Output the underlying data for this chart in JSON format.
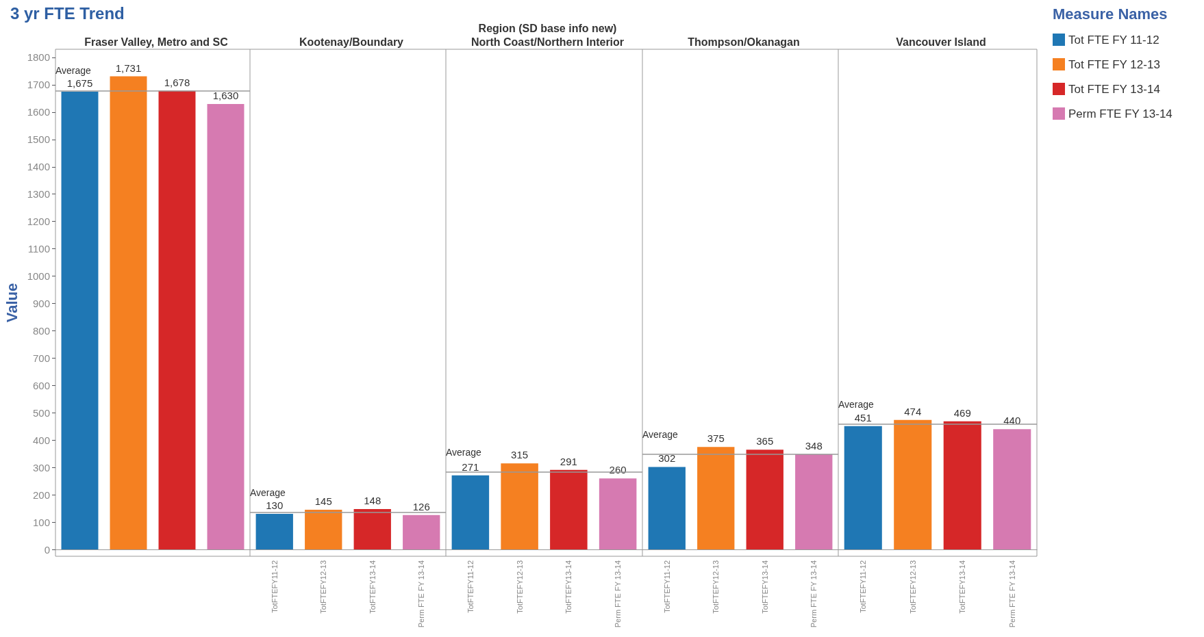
{
  "chart_data": [
    {
      "type": "bar",
      "title": "Fraser Valley, Metro and SC",
      "ylabel": "Value",
      "annotations": [
        "3 yr FTE Trend"
      ],
      "categories": [
        null,
        null,
        null,
        null
      ],
      "series": [
        {
          "color": "#1f77b4",
          "values": [
            1675,
            null,
            null,
            null
          ],
          "value_labels": [
            "1,675",
            null,
            null,
            null
          ]
        },
        {
          "color": "#f58021",
          "values": [
            null,
            1731,
            null,
            null
          ],
          "value_labels": [
            null,
            "1,731",
            null,
            null
          ]
        },
        {
          "color": "#d62728",
          "values": [
            null,
            null,
            1678,
            null
          ],
          "value_labels": [
            null,
            null,
            "1,678",
            null
          ]
        },
        {
          "color": "#d67ab1",
          "values": [
            null,
            null,
            null,
            1630
          ],
          "value_labels": [
            null,
            null,
            null,
            "1,630"
          ]
        }
      ],
      "stacked": true,
      "ylim": [
        -25,
        1830
      ],
      "yticks": [
        0,
        100,
        200,
        300,
        400,
        500,
        600,
        700,
        800,
        900,
        1000,
        1100,
        1200,
        1300,
        1400,
        1500,
        1600,
        1700,
        1800
      ],
      "tick_labels": "y",
      "ref_lines": [
        {
          "axis": "y",
          "value": 1679,
          "label": "Average"
        }
      ]
    },
    {
      "type": "bar",
      "title": "Kootenay/Boundary",
      "categories": [
        "TotFTEFY11-12",
        "TotFTEFY12-13",
        "TotFTEFY13-14",
        "Perm FTE FY 13-14"
      ],
      "series": [
        {
          "color": "#1f77b4",
          "values": [
            130,
            null,
            null,
            null
          ]
        },
        {
          "color": "#f58021",
          "values": [
            null,
            145,
            null,
            null
          ]
        },
        {
          "color": "#d62728",
          "values": [
            null,
            null,
            148,
            null
          ]
        },
        {
          "color": "#d67ab1",
          "values": [
            null,
            null,
            null,
            126
          ]
        }
      ],
      "stacked": true,
      "ylim": [
        -25,
        1830
      ],
      "yticks": [
        0,
        100,
        200,
        300,
        400,
        500,
        600,
        700,
        800,
        900,
        1000,
        1100,
        1200,
        1300,
        1400,
        1500,
        1600,
        1700,
        1800
      ],
      "tick_labels": "x",
      "data_labels": true,
      "ref_lines": [
        {
          "axis": "y",
          "value": 136,
          "label": "Average"
        }
      ]
    },
    {
      "type": "bar",
      "title": "North Coast/Northern Interior",
      "xlabel": "Region (SD base info new)",
      "categories": [
        "TotFTEFY11-12",
        "TotFTEFY12-13",
        "TotFTEFY13-14",
        "Perm FTE FY 13-14"
      ],
      "series": [
        {
          "color": "#1f77b4",
          "values": [
            271,
            null,
            null,
            null
          ]
        },
        {
          "color": "#f58021",
          "values": [
            null,
            315,
            null,
            null
          ]
        },
        {
          "color": "#d62728",
          "values": [
            null,
            null,
            291,
            null
          ]
        },
        {
          "color": "#d67ab1",
          "values": [
            null,
            null,
            null,
            260
          ]
        }
      ],
      "stacked": true,
      "ylim": [
        -25,
        1830
      ],
      "yticks": [
        0,
        100,
        200,
        300,
        400,
        500,
        600,
        700,
        800,
        900,
        1000,
        1100,
        1200,
        1300,
        1400,
        1500,
        1600,
        1700,
        1800
      ],
      "tick_labels": "x",
      "data_labels": true,
      "ref_lines": [
        {
          "axis": "y",
          "value": 284,
          "label": "Average"
        }
      ]
    },
    {
      "type": "bar",
      "title": "Thompson/Okanagan",
      "categories": [
        "TotFTEFY11-12",
        "TotFTEFY12-13",
        "TotFTEFY13-14",
        "Perm FTE FY 13-14"
      ],
      "series": [
        {
          "color": "#1f77b4",
          "values": [
            302,
            null,
            null,
            null
          ]
        },
        {
          "color": "#f58021",
          "values": [
            null,
            375,
            null,
            null
          ]
        },
        {
          "color": "#d62728",
          "values": [
            null,
            null,
            365,
            null
          ]
        },
        {
          "color": "#d67ab1",
          "values": [
            null,
            null,
            null,
            348
          ]
        }
      ],
      "stacked": true,
      "ylim": [
        -25,
        1830
      ],
      "yticks": [
        0,
        100,
        200,
        300,
        400,
        500,
        600,
        700,
        800,
        900,
        1000,
        1100,
        1200,
        1300,
        1400,
        1500,
        1600,
        1700,
        1800
      ],
      "tick_labels": "x",
      "data_labels": true,
      "ref_lines": [
        {
          "axis": "y",
          "value": 348,
          "label": "Average"
        }
      ]
    },
    {
      "type": "bar",
      "title": "Vancouver Island",
      "legend_title": "Measure Names",
      "legend": "top right",
      "categories": [
        "TotFTEFY11-12",
        "TotFTEFY12-13",
        "TotFTEFY13-14",
        "Perm FTE FY 13-14"
      ],
      "series": [
        {
          "name": "Tot FTE FY 11-12",
          "color": "#1f77b4",
          "values": [
            451,
            null,
            null,
            null
          ]
        },
        {
          "name": "Tot FTE FY 12-13",
          "color": "#f58021",
          "values": [
            null,
            474,
            null,
            null
          ]
        },
        {
          "name": "Tot FTE FY 13-14",
          "color": "#d62728",
          "values": [
            null,
            null,
            469,
            null
          ]
        },
        {
          "name": "Perm FTE FY 13-14",
          "color": "#d67ab1",
          "values": [
            null,
            null,
            null,
            440
          ]
        }
      ],
      "stacked": true,
      "ylim": [
        -25,
        1830
      ],
      "yticks": [
        0,
        100,
        200,
        300,
        400,
        500,
        600,
        700,
        800,
        900,
        1000,
        1100,
        1200,
        1300,
        1400,
        1500,
        1600,
        1700,
        1800
      ],
      "tick_labels": "x",
      "data_labels": true,
      "ref_lines": [
        {
          "axis": "y",
          "value": 459,
          "label": "Average"
        }
      ]
    }
  ]
}
